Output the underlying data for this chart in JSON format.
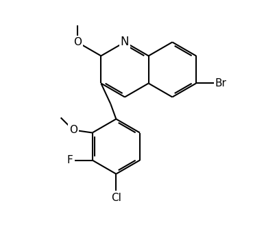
{
  "bg": "#ffffff",
  "lc": "#000000",
  "lw": 1.5,
  "fs": 11,
  "figsize": [
    4.04,
    3.63
  ],
  "dpi": 100,
  "xlim": [
    0,
    10
  ],
  "ylim": [
    0,
    9
  ]
}
